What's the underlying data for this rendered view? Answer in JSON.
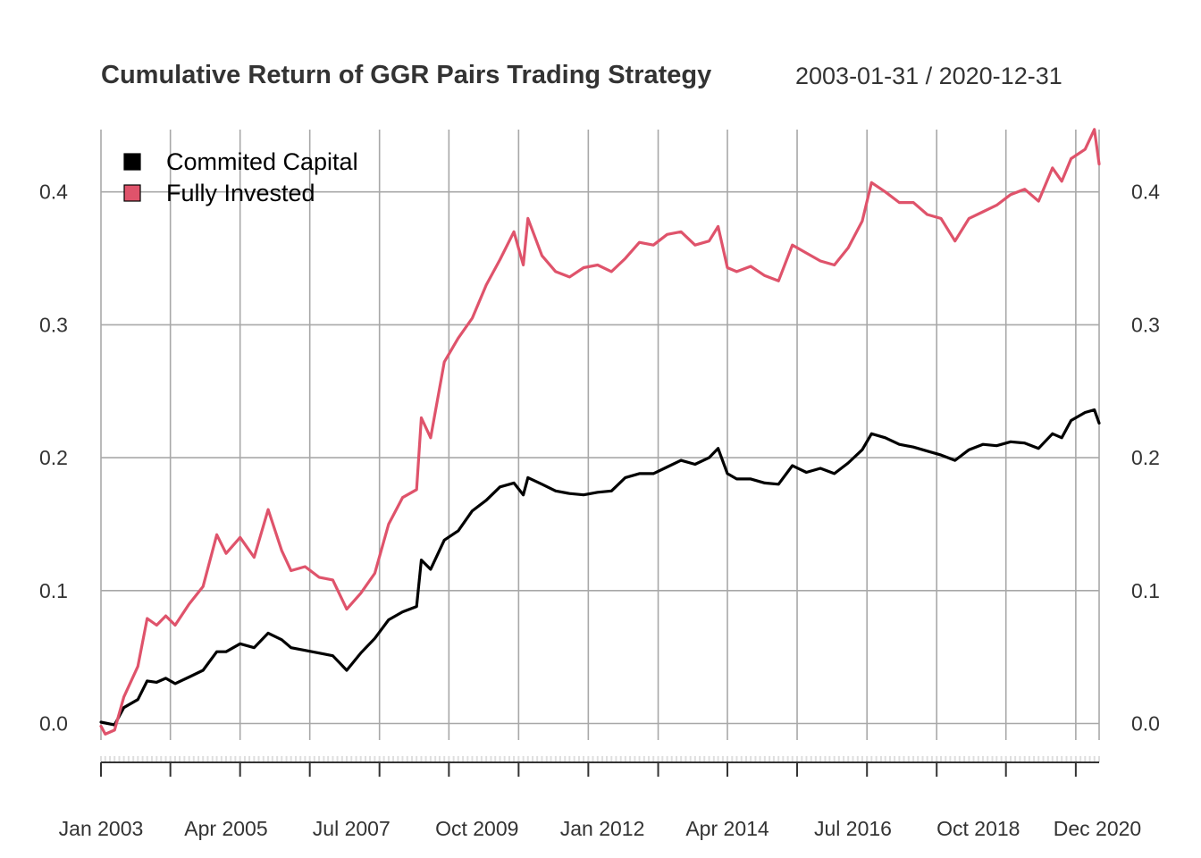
{
  "chart_data": {
    "type": "line",
    "title": "Cumulative Return of GGR Pairs Trading Strategy",
    "date_range": "2003-01-31 / 2020-12-31",
    "x_type": "date",
    "x_range": [
      "2003-01-31",
      "2020-12-31"
    ],
    "ylim": [
      -0.02,
      0.45
    ],
    "yticks": [
      0.0,
      0.1,
      0.2,
      0.3,
      0.4
    ],
    "ytick_labels": [
      "0.0",
      "0.1",
      "0.2",
      "0.3",
      "0.4"
    ],
    "xtick_labels": [
      {
        "date": "2003-01-31",
        "label": "Jan 2003"
      },
      {
        "date": "2005-04-30",
        "label": "Apr 2005"
      },
      {
        "date": "2007-07-31",
        "label": "Jul 2007"
      },
      {
        "date": "2009-10-31",
        "label": "Oct 2009"
      },
      {
        "date": "2012-01-31",
        "label": "Jan 2012"
      },
      {
        "date": "2014-04-30",
        "label": "Apr 2014"
      },
      {
        "date": "2016-07-31",
        "label": "Jul 2016"
      },
      {
        "date": "2018-10-31",
        "label": "Oct 2018"
      },
      {
        "date": "2020-12-31",
        "label": "Dec 2020"
      }
    ],
    "grid": true,
    "legend_position": "top-left",
    "series": [
      {
        "name": "Commited Capital",
        "color": "#000000",
        "points": [
          [
            "2003-01-31",
            0.001
          ],
          [
            "2003-04-30",
            -0.001
          ],
          [
            "2003-06-30",
            0.012
          ],
          [
            "2003-09-30",
            0.018
          ],
          [
            "2003-11-30",
            0.032
          ],
          [
            "2004-01-31",
            0.031
          ],
          [
            "2004-03-31",
            0.034
          ],
          [
            "2004-05-31",
            0.03
          ],
          [
            "2004-08-31",
            0.035
          ],
          [
            "2004-11-30",
            0.04
          ],
          [
            "2005-02-28",
            0.054
          ],
          [
            "2005-04-30",
            0.054
          ],
          [
            "2005-07-31",
            0.06
          ],
          [
            "2005-10-31",
            0.057
          ],
          [
            "2006-01-31",
            0.068
          ],
          [
            "2006-04-30",
            0.063
          ],
          [
            "2006-06-30",
            0.057
          ],
          [
            "2006-09-30",
            0.055
          ],
          [
            "2006-12-31",
            0.053
          ],
          [
            "2007-03-31",
            0.051
          ],
          [
            "2007-06-30",
            0.04
          ],
          [
            "2007-09-30",
            0.053
          ],
          [
            "2007-12-31",
            0.064
          ],
          [
            "2008-03-31",
            0.078
          ],
          [
            "2008-06-30",
            0.084
          ],
          [
            "2008-09-30",
            0.088
          ],
          [
            "2008-10-31",
            0.123
          ],
          [
            "2008-12-31",
            0.116
          ],
          [
            "2009-03-31",
            0.138
          ],
          [
            "2009-06-30",
            0.145
          ],
          [
            "2009-09-30",
            0.16
          ],
          [
            "2009-12-31",
            0.168
          ],
          [
            "2010-03-31",
            0.178
          ],
          [
            "2010-06-30",
            0.181
          ],
          [
            "2010-08-31",
            0.172
          ],
          [
            "2010-09-30",
            0.185
          ],
          [
            "2010-12-31",
            0.18
          ],
          [
            "2011-03-31",
            0.175
          ],
          [
            "2011-06-30",
            0.173
          ],
          [
            "2011-09-30",
            0.172
          ],
          [
            "2011-12-31",
            0.174
          ],
          [
            "2012-03-31",
            0.175
          ],
          [
            "2012-06-30",
            0.185
          ],
          [
            "2012-09-30",
            0.188
          ],
          [
            "2012-12-31",
            0.188
          ],
          [
            "2013-03-31",
            0.193
          ],
          [
            "2013-06-30",
            0.198
          ],
          [
            "2013-09-30",
            0.195
          ],
          [
            "2013-12-31",
            0.2
          ],
          [
            "2014-02-28",
            0.207
          ],
          [
            "2014-04-30",
            0.188
          ],
          [
            "2014-06-30",
            0.184
          ],
          [
            "2014-09-30",
            0.184
          ],
          [
            "2014-12-31",
            0.181
          ],
          [
            "2015-03-31",
            0.18
          ],
          [
            "2015-06-30",
            0.194
          ],
          [
            "2015-09-30",
            0.189
          ],
          [
            "2015-12-31",
            0.192
          ],
          [
            "2016-03-31",
            0.188
          ],
          [
            "2016-06-30",
            0.196
          ],
          [
            "2016-09-30",
            0.206
          ],
          [
            "2016-11-30",
            0.218
          ],
          [
            "2017-02-28",
            0.215
          ],
          [
            "2017-05-31",
            0.21
          ],
          [
            "2017-08-31",
            0.208
          ],
          [
            "2017-11-30",
            0.205
          ],
          [
            "2018-02-28",
            0.202
          ],
          [
            "2018-05-31",
            0.198
          ],
          [
            "2018-08-31",
            0.206
          ],
          [
            "2018-11-30",
            0.21
          ],
          [
            "2019-02-28",
            0.209
          ],
          [
            "2019-05-31",
            0.212
          ],
          [
            "2019-08-31",
            0.211
          ],
          [
            "2019-11-30",
            0.207
          ],
          [
            "2020-02-29",
            0.218
          ],
          [
            "2020-04-30",
            0.215
          ],
          [
            "2020-06-30",
            0.228
          ],
          [
            "2020-09-30",
            0.234
          ],
          [
            "2020-11-30",
            0.236
          ],
          [
            "2020-12-31",
            0.226
          ]
        ]
      },
      {
        "name": "Fully Invested",
        "color": "#DF536B",
        "points": [
          [
            "2003-01-31",
            -0.002
          ],
          [
            "2003-02-28",
            -0.008
          ],
          [
            "2003-04-30",
            -0.005
          ],
          [
            "2003-06-30",
            0.02
          ],
          [
            "2003-09-30",
            0.043
          ],
          [
            "2003-11-30",
            0.079
          ],
          [
            "2004-01-31",
            0.074
          ],
          [
            "2004-03-31",
            0.081
          ],
          [
            "2004-05-31",
            0.074
          ],
          [
            "2004-08-31",
            0.09
          ],
          [
            "2004-11-30",
            0.103
          ],
          [
            "2005-02-28",
            0.142
          ],
          [
            "2005-04-30",
            0.128
          ],
          [
            "2005-07-31",
            0.14
          ],
          [
            "2005-10-31",
            0.125
          ],
          [
            "2006-01-31",
            0.161
          ],
          [
            "2006-04-30",
            0.13
          ],
          [
            "2006-06-30",
            0.115
          ],
          [
            "2006-09-30",
            0.118
          ],
          [
            "2006-12-31",
            0.11
          ],
          [
            "2007-03-31",
            0.108
          ],
          [
            "2007-06-30",
            0.086
          ],
          [
            "2007-09-30",
            0.098
          ],
          [
            "2007-12-31",
            0.113
          ],
          [
            "2008-03-31",
            0.15
          ],
          [
            "2008-06-30",
            0.17
          ],
          [
            "2008-09-30",
            0.176
          ],
          [
            "2008-10-31",
            0.23
          ],
          [
            "2008-12-31",
            0.215
          ],
          [
            "2009-03-31",
            0.272
          ],
          [
            "2009-06-30",
            0.29
          ],
          [
            "2009-09-30",
            0.305
          ],
          [
            "2009-12-31",
            0.33
          ],
          [
            "2010-03-31",
            0.349
          ],
          [
            "2010-06-30",
            0.37
          ],
          [
            "2010-08-31",
            0.345
          ],
          [
            "2010-09-30",
            0.38
          ],
          [
            "2010-12-31",
            0.352
          ],
          [
            "2011-03-31",
            0.34
          ],
          [
            "2011-06-30",
            0.336
          ],
          [
            "2011-09-30",
            0.343
          ],
          [
            "2011-12-31",
            0.345
          ],
          [
            "2012-03-31",
            0.34
          ],
          [
            "2012-06-30",
            0.35
          ],
          [
            "2012-09-30",
            0.362
          ],
          [
            "2012-12-31",
            0.36
          ],
          [
            "2013-03-31",
            0.368
          ],
          [
            "2013-06-30",
            0.37
          ],
          [
            "2013-09-30",
            0.36
          ],
          [
            "2013-12-31",
            0.363
          ],
          [
            "2014-02-28",
            0.374
          ],
          [
            "2014-04-30",
            0.343
          ],
          [
            "2014-06-30",
            0.34
          ],
          [
            "2014-09-30",
            0.344
          ],
          [
            "2014-12-31",
            0.337
          ],
          [
            "2015-03-31",
            0.333
          ],
          [
            "2015-06-30",
            0.36
          ],
          [
            "2015-09-30",
            0.354
          ],
          [
            "2015-12-31",
            0.348
          ],
          [
            "2016-03-31",
            0.345
          ],
          [
            "2016-06-30",
            0.358
          ],
          [
            "2016-09-30",
            0.378
          ],
          [
            "2016-11-30",
            0.407
          ],
          [
            "2017-02-28",
            0.4
          ],
          [
            "2017-05-31",
            0.392
          ],
          [
            "2017-08-31",
            0.392
          ],
          [
            "2017-11-30",
            0.383
          ],
          [
            "2018-02-28",
            0.38
          ],
          [
            "2018-05-31",
            0.363
          ],
          [
            "2018-08-31",
            0.38
          ],
          [
            "2018-11-30",
            0.385
          ],
          [
            "2019-02-28",
            0.39
          ],
          [
            "2019-05-31",
            0.398
          ],
          [
            "2019-08-31",
            0.402
          ],
          [
            "2019-11-30",
            0.393
          ],
          [
            "2020-02-29",
            0.418
          ],
          [
            "2020-04-30",
            0.408
          ],
          [
            "2020-06-30",
            0.425
          ],
          [
            "2020-09-30",
            0.432
          ],
          [
            "2020-11-30",
            0.447
          ],
          [
            "2020-12-31",
            0.421
          ]
        ]
      }
    ]
  }
}
